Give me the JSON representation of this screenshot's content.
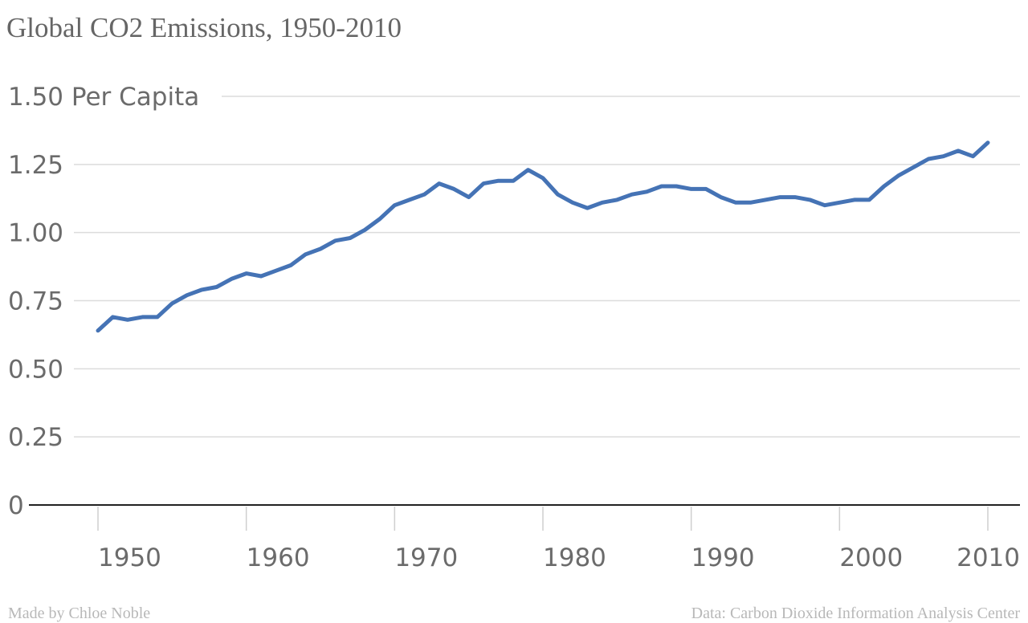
{
  "chart_data": {
    "type": "line",
    "title": "Global CO2 Emissions, 1950-2010",
    "ylabel": "Per Capita",
    "xlabel": "",
    "xlim": [
      1950,
      2010
    ],
    "ylim": [
      0,
      1.5
    ],
    "grid": true,
    "x_ticks": [
      1950,
      1960,
      1970,
      1980,
      1990,
      2000,
      2010
    ],
    "x_tick_labels": [
      "1950",
      "1960",
      "1970",
      "1980",
      "1990",
      "2000",
      "2010"
    ],
    "y_ticks": [
      0,
      0.25,
      0.5,
      0.75,
      1.0,
      1.25,
      1.5
    ],
    "y_tick_labels": [
      "0",
      "0.25",
      "0.50",
      "0.75",
      "1.00",
      "1.25",
      "1.50"
    ],
    "series": [
      {
        "color": "#4573b5",
        "x": [
          1950,
          1951,
          1952,
          1953,
          1954,
          1955,
          1956,
          1957,
          1958,
          1959,
          1960,
          1961,
          1962,
          1963,
          1964,
          1965,
          1966,
          1967,
          1968,
          1969,
          1970,
          1971,
          1972,
          1973,
          1974,
          1975,
          1976,
          1977,
          1978,
          1979,
          1980,
          1981,
          1982,
          1983,
          1984,
          1985,
          1986,
          1987,
          1988,
          1989,
          1990,
          1991,
          1992,
          1993,
          1994,
          1995,
          1996,
          1997,
          1998,
          1999,
          2000,
          2001,
          2002,
          2003,
          2004,
          2005,
          2006,
          2007,
          2008,
          2009,
          2010
        ],
        "values": [
          0.64,
          0.69,
          0.68,
          0.69,
          0.69,
          0.74,
          0.77,
          0.79,
          0.8,
          0.83,
          0.85,
          0.84,
          0.86,
          0.88,
          0.92,
          0.94,
          0.97,
          0.98,
          1.01,
          1.05,
          1.1,
          1.12,
          1.14,
          1.18,
          1.16,
          1.13,
          1.18,
          1.19,
          1.19,
          1.23,
          1.2,
          1.14,
          1.11,
          1.09,
          1.11,
          1.12,
          1.14,
          1.15,
          1.17,
          1.17,
          1.16,
          1.16,
          1.13,
          1.11,
          1.11,
          1.12,
          1.13,
          1.13,
          1.12,
          1.1,
          1.11,
          1.12,
          1.12,
          1.17,
          1.21,
          1.24,
          1.27,
          1.28,
          1.3,
          1.28,
          1.33
        ]
      }
    ]
  },
  "footer": {
    "credit": "Made by Chloe Noble",
    "source": "Data: Carbon Dioxide Information Analysis Center"
  }
}
